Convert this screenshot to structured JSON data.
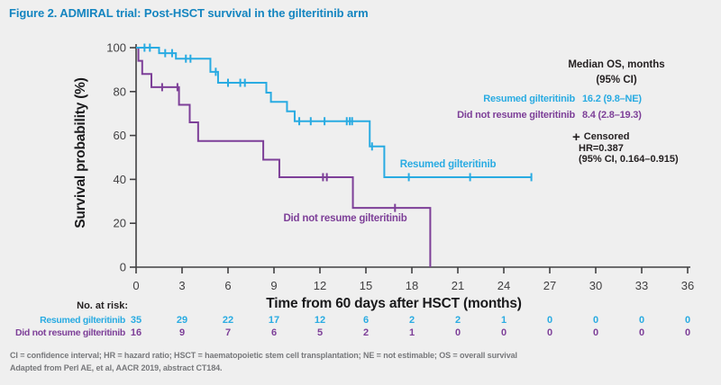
{
  "title": "Figure 2. ADMIRAL trial: Post-HSCT survival in the gilteritinib arm",
  "colors": {
    "background": "#efefef",
    "title_blue": "#1485c0",
    "resumed_blue": "#29abe2",
    "did_not_resume_purple": "#7d3f98",
    "axis_gray": "#414042",
    "text_black": "#231f20",
    "footnote_gray": "#77787b"
  },
  "chart_data": {
    "type": "line",
    "subtype": "kaplan-meier-step",
    "title": "Post-HSCT survival in the gilteritinib arm",
    "xlabel": "Time from 60 days after HSCT (months)",
    "ylabel": "Survival probability (%)",
    "xlim": [
      0,
      36
    ],
    "ylim": [
      0,
      100
    ],
    "x_ticks": [
      0,
      3,
      6,
      9,
      12,
      15,
      18,
      21,
      24,
      27,
      30,
      33,
      36
    ],
    "y_ticks": [
      0,
      20,
      40,
      60,
      80,
      100
    ],
    "grid": false,
    "legend_position": "top-right",
    "series": [
      {
        "name": "Resumed gilteritinib",
        "color": "#29abe2",
        "median_os_95ci": "16.2 (9.8–NE)",
        "steps": [
          [
            0,
            100
          ],
          [
            1.5,
            97.5
          ],
          [
            2.6,
            95
          ],
          [
            4.85,
            89
          ],
          [
            5.35,
            84
          ],
          [
            8.5,
            79.5
          ],
          [
            8.8,
            75.3
          ],
          [
            9.85,
            71
          ],
          [
            10.35,
            66.5
          ],
          [
            15.25,
            55
          ],
          [
            16.2,
            41
          ]
        ],
        "end_month": 25.8,
        "censored": [
          [
            0.55,
            100
          ],
          [
            0.9,
            100
          ],
          [
            1.9,
            97.5
          ],
          [
            2.35,
            97.5
          ],
          [
            3.25,
            95
          ],
          [
            3.55,
            95
          ],
          [
            5.2,
            89
          ],
          [
            6.0,
            84
          ],
          [
            6.8,
            84
          ],
          [
            7.1,
            84
          ],
          [
            10.65,
            66.5
          ],
          [
            11.4,
            66.5
          ],
          [
            12.3,
            66.5
          ],
          [
            13.75,
            66.5
          ],
          [
            13.95,
            66.5
          ],
          [
            14.1,
            66.5
          ],
          [
            15.4,
            55
          ],
          [
            17.8,
            41
          ],
          [
            21.8,
            41
          ],
          [
            25.8,
            41
          ]
        ]
      },
      {
        "name": "Did not resume gilteritinib",
        "color": "#7d3f98",
        "median_os_95ci": "8.4 (2.8–19.3)",
        "steps": [
          [
            0,
            100
          ],
          [
            0.15,
            94
          ],
          [
            0.4,
            88
          ],
          [
            1.0,
            82
          ],
          [
            2.8,
            74
          ],
          [
            3.5,
            66
          ],
          [
            4.05,
            57.5
          ],
          [
            8.3,
            49
          ],
          [
            9.35,
            41
          ],
          [
            14.15,
            27
          ],
          [
            19.2,
            0
          ]
        ],
        "end_month": 19.2,
        "censored": [
          [
            1.7,
            82
          ],
          [
            2.7,
            82
          ],
          [
            12.2,
            41
          ],
          [
            12.45,
            41
          ],
          [
            16.9,
            27
          ]
        ]
      }
    ],
    "at_risk": {
      "label": "No. at risk:",
      "months": [
        0,
        3,
        6,
        9,
        12,
        15,
        18,
        21,
        24,
        27,
        30,
        33,
        36
      ],
      "rows": [
        {
          "name": "Resumed gilteritinib",
          "counts": [
            35,
            29,
            22,
            17,
            12,
            6,
            2,
            2,
            1,
            0,
            0,
            0,
            0
          ]
        },
        {
          "name": "Did not resume gilteritinib",
          "counts": [
            16,
            9,
            7,
            6,
            5,
            2,
            1,
            0,
            0,
            0,
            0,
            0,
            0
          ]
        }
      ]
    }
  },
  "legend": {
    "header_line1": "Median OS, months",
    "header_line2": "(95% CI)",
    "rows": [
      {
        "label": "Resumed gilteritinib",
        "value": "16.2 (9.8–NE)"
      },
      {
        "label": "Did not resume gilteritinib",
        "value": "8.4 (2.8–19.3)"
      }
    ],
    "censored_symbol": "+",
    "censored_label": "Censored",
    "hr_line": "HR=0.387",
    "hr_ci_line": "(95% CI, 0.164–0.915)"
  },
  "plot_labels": {
    "resumed": "Resumed gilteritinib",
    "did_not_resume": "Did not resume gilteritinib"
  },
  "footnotes": {
    "line1": "CI = confidence interval; HR = hazard ratio; HSCT = haematopoietic stem cell transplantation; NE = not estimable; OS = overall survival",
    "line2": "Adapted from Perl AE, et al, AACR 2019, abstract CT184."
  }
}
